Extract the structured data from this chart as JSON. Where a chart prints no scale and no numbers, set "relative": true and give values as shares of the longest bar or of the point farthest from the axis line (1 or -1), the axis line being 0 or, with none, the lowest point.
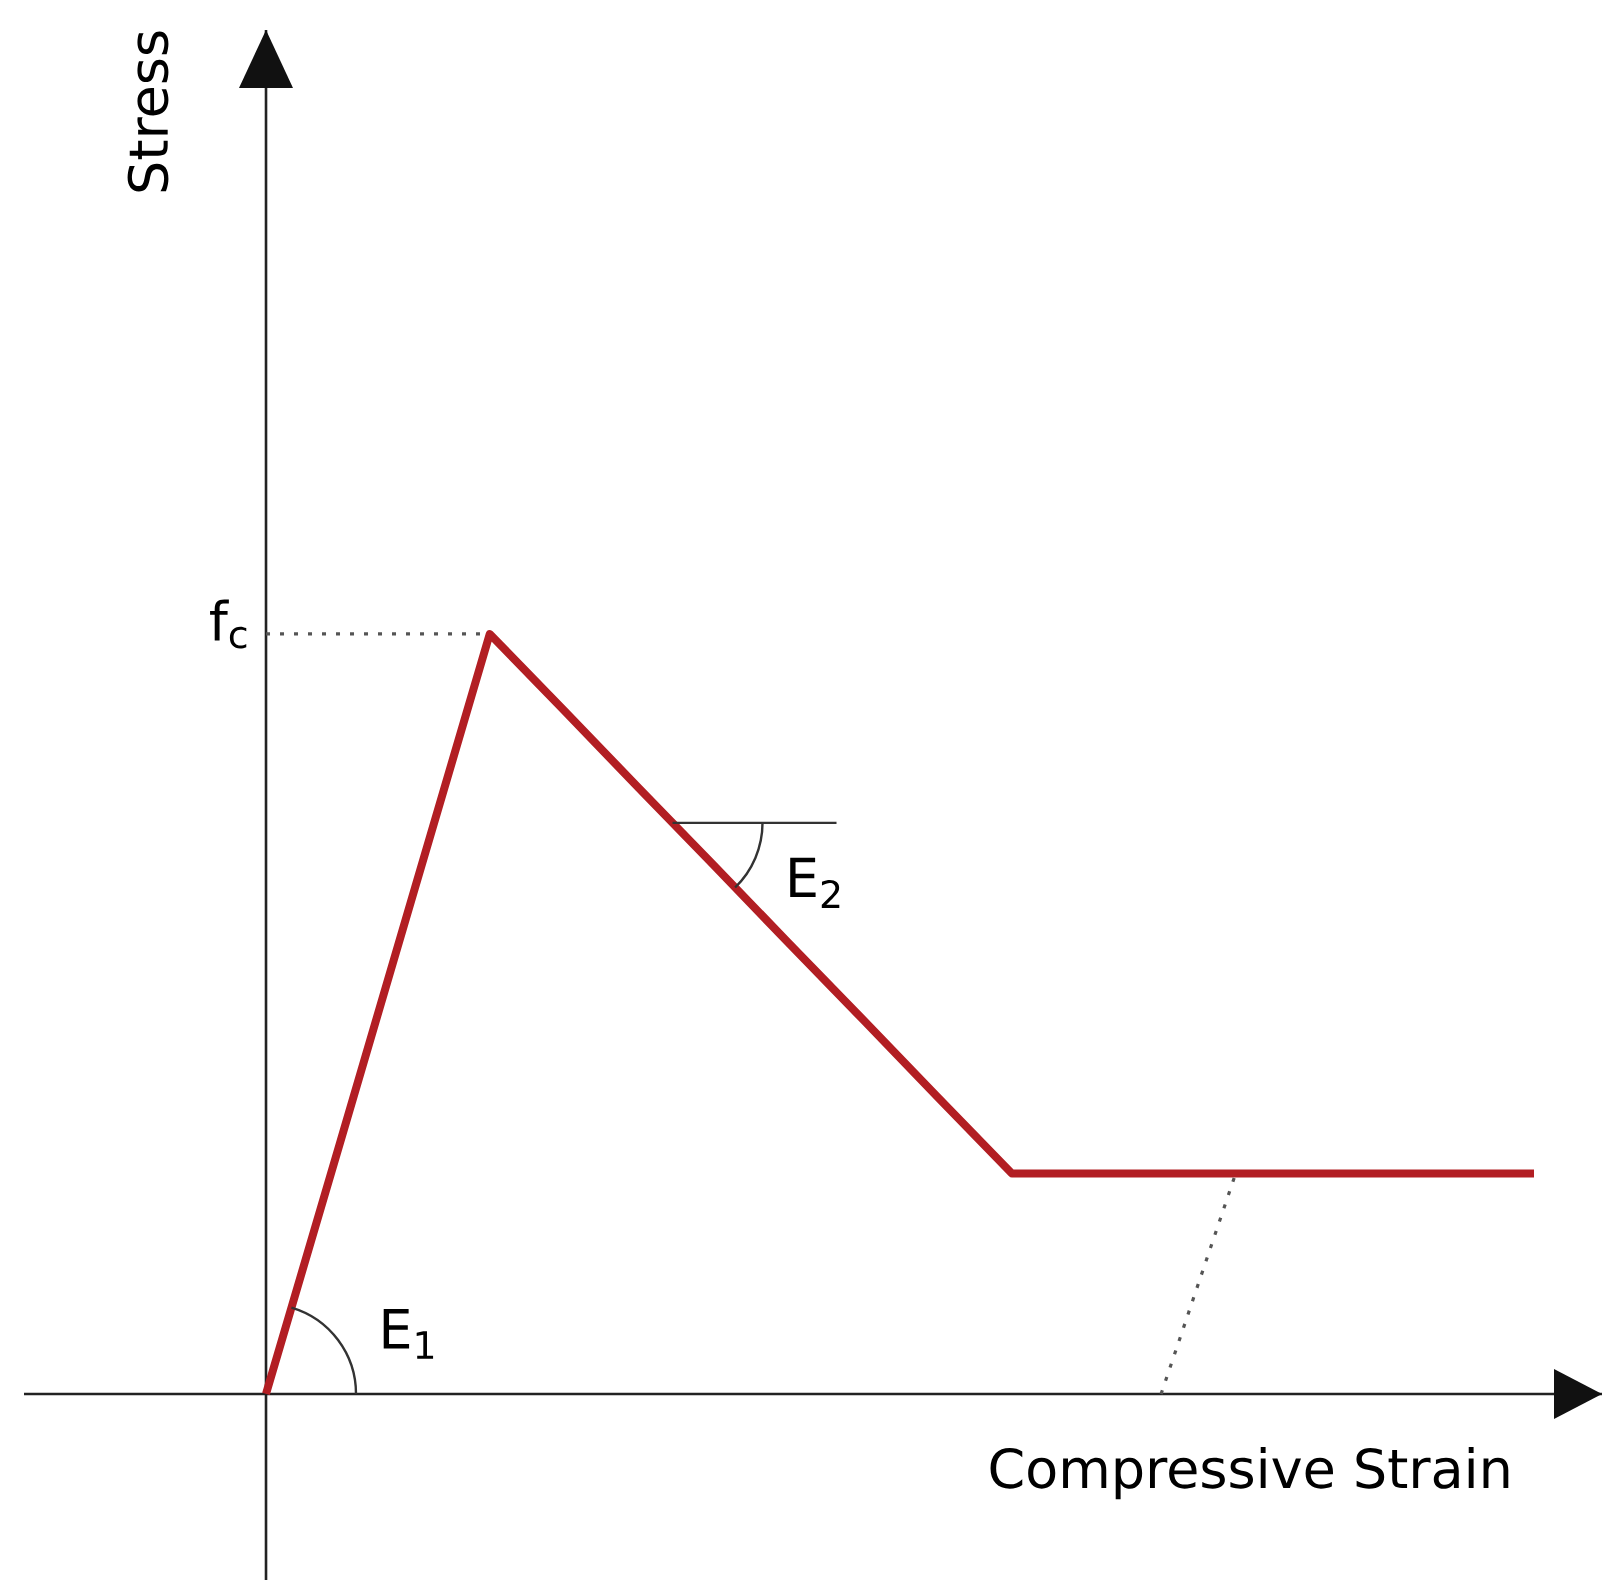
{
  "chart_data": {
    "type": "line",
    "relative": true,
    "xlabel": "Compressive Strain",
    "categories": [
      null,
      null,
      null,
      null,
      null,
      null,
      null,
      null,
      null,
      null,
      null,
      null,
      null,
      null,
      null,
      null,
      null,
      null
    ],
    "series": [
      {
        "color": "#b21e23",
        "line_style": "solid",
        "values": [
          0,
          0.333,
          0.667,
          1,
          0.899,
          0.797,
          0.696,
          0.594,
          0.493,
          0.391,
          0.29,
          0.29,
          0.29,
          0.29,
          0.29,
          0.29,
          0.29,
          0.29
        ]
      },
      {
        "color": "#555555",
        "line_style": "dotted",
        "values": [
          null,
          null,
          null,
          null,
          null,
          null,
          null,
          null,
          null,
          null,
          null,
          null,
          0,
          0.29,
          null,
          null,
          null,
          null
        ]
      }
    ],
    "ref_lines": [
      {
        "axis": "y",
        "value": 1,
        "label": "f$_{c}$",
        "line_style": "dotted",
        "color": "#555555"
      }
    ],
    "annotations": [
      "Stress",
      "E$_{1}$",
      "E$_{2}$"
    ],
    "marker": "none"
  }
}
